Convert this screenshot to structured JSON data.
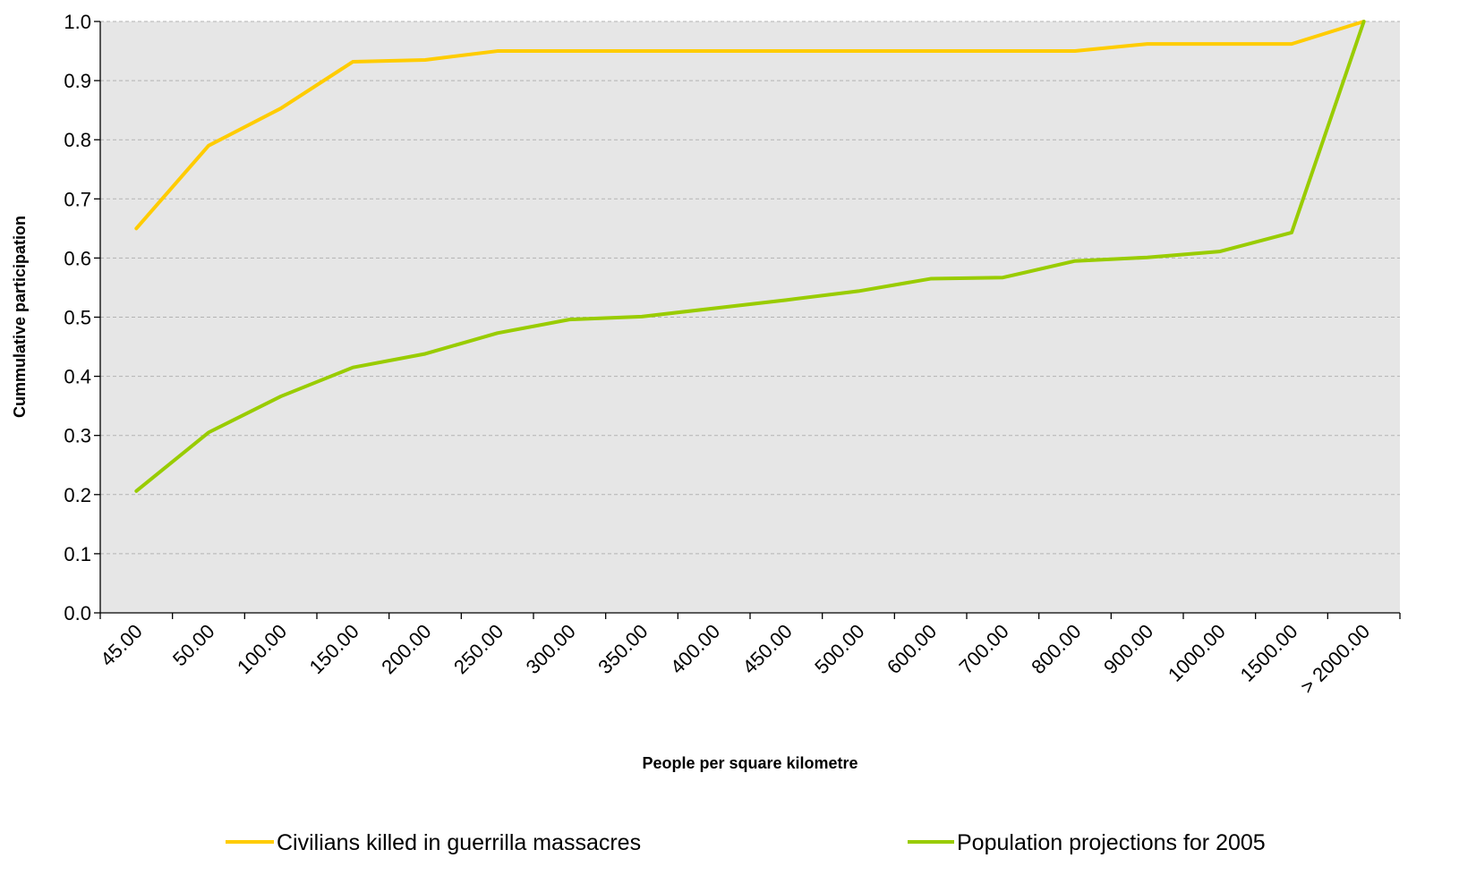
{
  "chart_data": {
    "type": "line",
    "title": "",
    "xlabel": "People per square kilometre",
    "ylabel": "Cummulative participation",
    "ylim": [
      0,
      1
    ],
    "yticks": [
      "0.0",
      "0.1",
      "0.2",
      "0.3",
      "0.4",
      "0.5",
      "0.6",
      "0.7",
      "0.8",
      "0.9",
      "1.0"
    ],
    "grid": "horizontal dashed",
    "legend_position": "bottom",
    "categories": [
      "45.00",
      "50.00",
      "100.00",
      "150.00",
      "200.00",
      "250.00",
      "300.00",
      "350.00",
      "400.00",
      "450.00",
      "500.00",
      "600.00",
      "700.00",
      "800.00",
      "900.00",
      "1000.00",
      "1500.00",
      "> 2000.00"
    ],
    "series": [
      {
        "name": "Civilians killed in guerrilla massacres",
        "color": "#ffcc00",
        "values": [
          0.65,
          0.79,
          0.853,
          0.932,
          0.935,
          0.95,
          0.95,
          0.95,
          0.95,
          0.95,
          0.95,
          0.95,
          0.95,
          0.95,
          0.962,
          0.962,
          0.962,
          1.0
        ]
      },
      {
        "name": "Population projections for 2005",
        "color": "#99cc00",
        "values": [
          0.206,
          0.305,
          0.366,
          0.415,
          0.438,
          0.473,
          0.496,
          0.501,
          0.515,
          0.529,
          0.544,
          0.565,
          0.567,
          0.595,
          0.601,
          0.611,
          0.643,
          1.0
        ]
      }
    ]
  }
}
